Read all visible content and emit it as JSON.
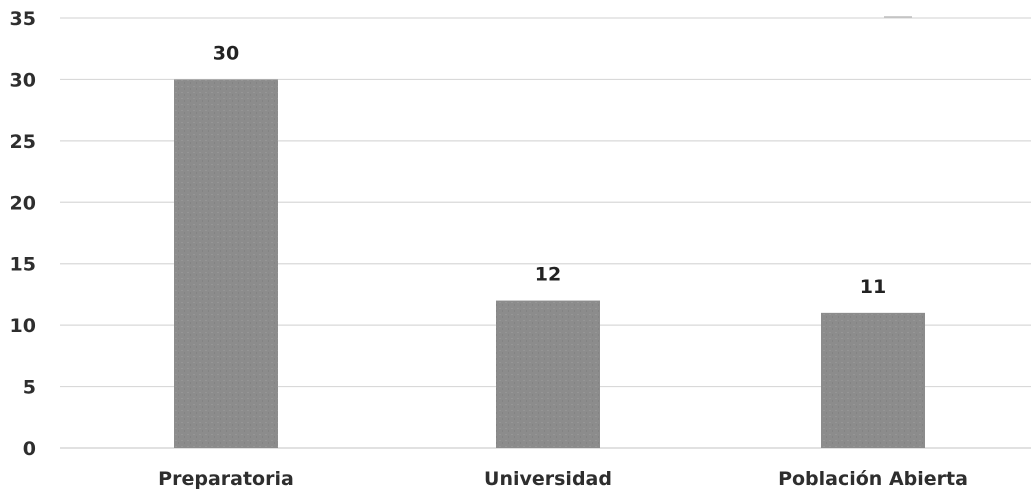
{
  "chart_data": {
    "type": "bar",
    "title": "",
    "xlabel": "",
    "ylabel": "",
    "categories": [
      "Preparatoria",
      "Universidad",
      "Población Abierta"
    ],
    "values": [
      30,
      12,
      11
    ],
    "data_labels": [
      "30",
      "12",
      "11"
    ],
    "ylim": [
      0,
      35
    ],
    "y_ticks": [
      0,
      5,
      10,
      15,
      20,
      25,
      30,
      35
    ],
    "y_tick_labels": [
      "0",
      "5",
      "10",
      "15",
      "20",
      "25",
      "30",
      "35"
    ],
    "grid": true,
    "legend": "none",
    "colors": {
      "bar": "#8a8a8a",
      "bar_texture": "#9a9a9a",
      "grid": "#d9d9d9",
      "text": "#2e2e2e"
    }
  }
}
